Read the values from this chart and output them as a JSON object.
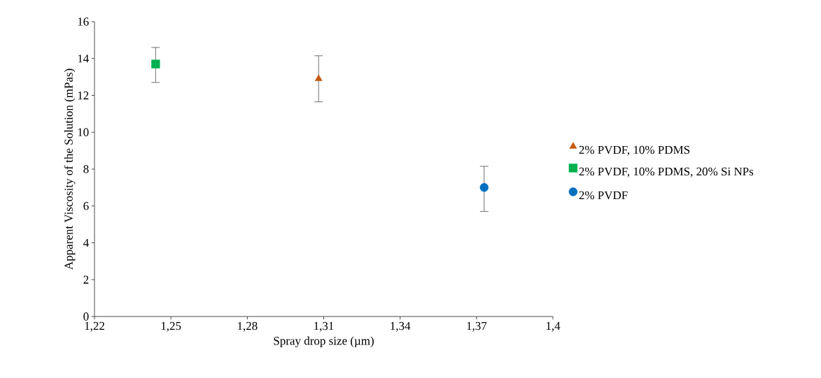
{
  "chart_data": {
    "type": "scatter",
    "xlabel": "Spray drop size (µm)",
    "ylabel": "Apparent Viscosity of the Solution (mPas)",
    "xlim": [
      1.22,
      1.4
    ],
    "ylim": [
      0,
      16
    ],
    "xticks": [
      {
        "value": 1.22,
        "label": "1,22"
      },
      {
        "value": 1.25,
        "label": "1,25"
      },
      {
        "value": 1.28,
        "label": "1,28"
      },
      {
        "value": 1.31,
        "label": "1,31"
      },
      {
        "value": 1.34,
        "label": "1,34"
      },
      {
        "value": 1.37,
        "label": "1,37"
      },
      {
        "value": 1.4,
        "label": "1,4"
      }
    ],
    "yticks": [
      0,
      2,
      4,
      6,
      8,
      10,
      12,
      14,
      16
    ],
    "legend": "right",
    "grid": false,
    "series": [
      {
        "name": "2% PVDF, 10% PDMS",
        "color": "#c55a11",
        "marker": "triangle",
        "x": [
          1.308
        ],
        "values": [
          12.9
        ],
        "errors": [
          [
            11.65,
            14.15
          ]
        ]
      },
      {
        "name": "2% PVDF, 10% PDMS, 20% Si NPs",
        "color": "#00b050",
        "marker": "square",
        "x": [
          1.244
        ],
        "values": [
          13.7
        ],
        "errors": [
          [
            12.7,
            14.6
          ]
        ]
      },
      {
        "name": "2% PVDF",
        "color": "#0070c0",
        "marker": "circle",
        "x": [
          1.373
        ],
        "values": [
          7.0
        ],
        "errors": [
          [
            5.7,
            8.15
          ]
        ]
      }
    ]
  }
}
